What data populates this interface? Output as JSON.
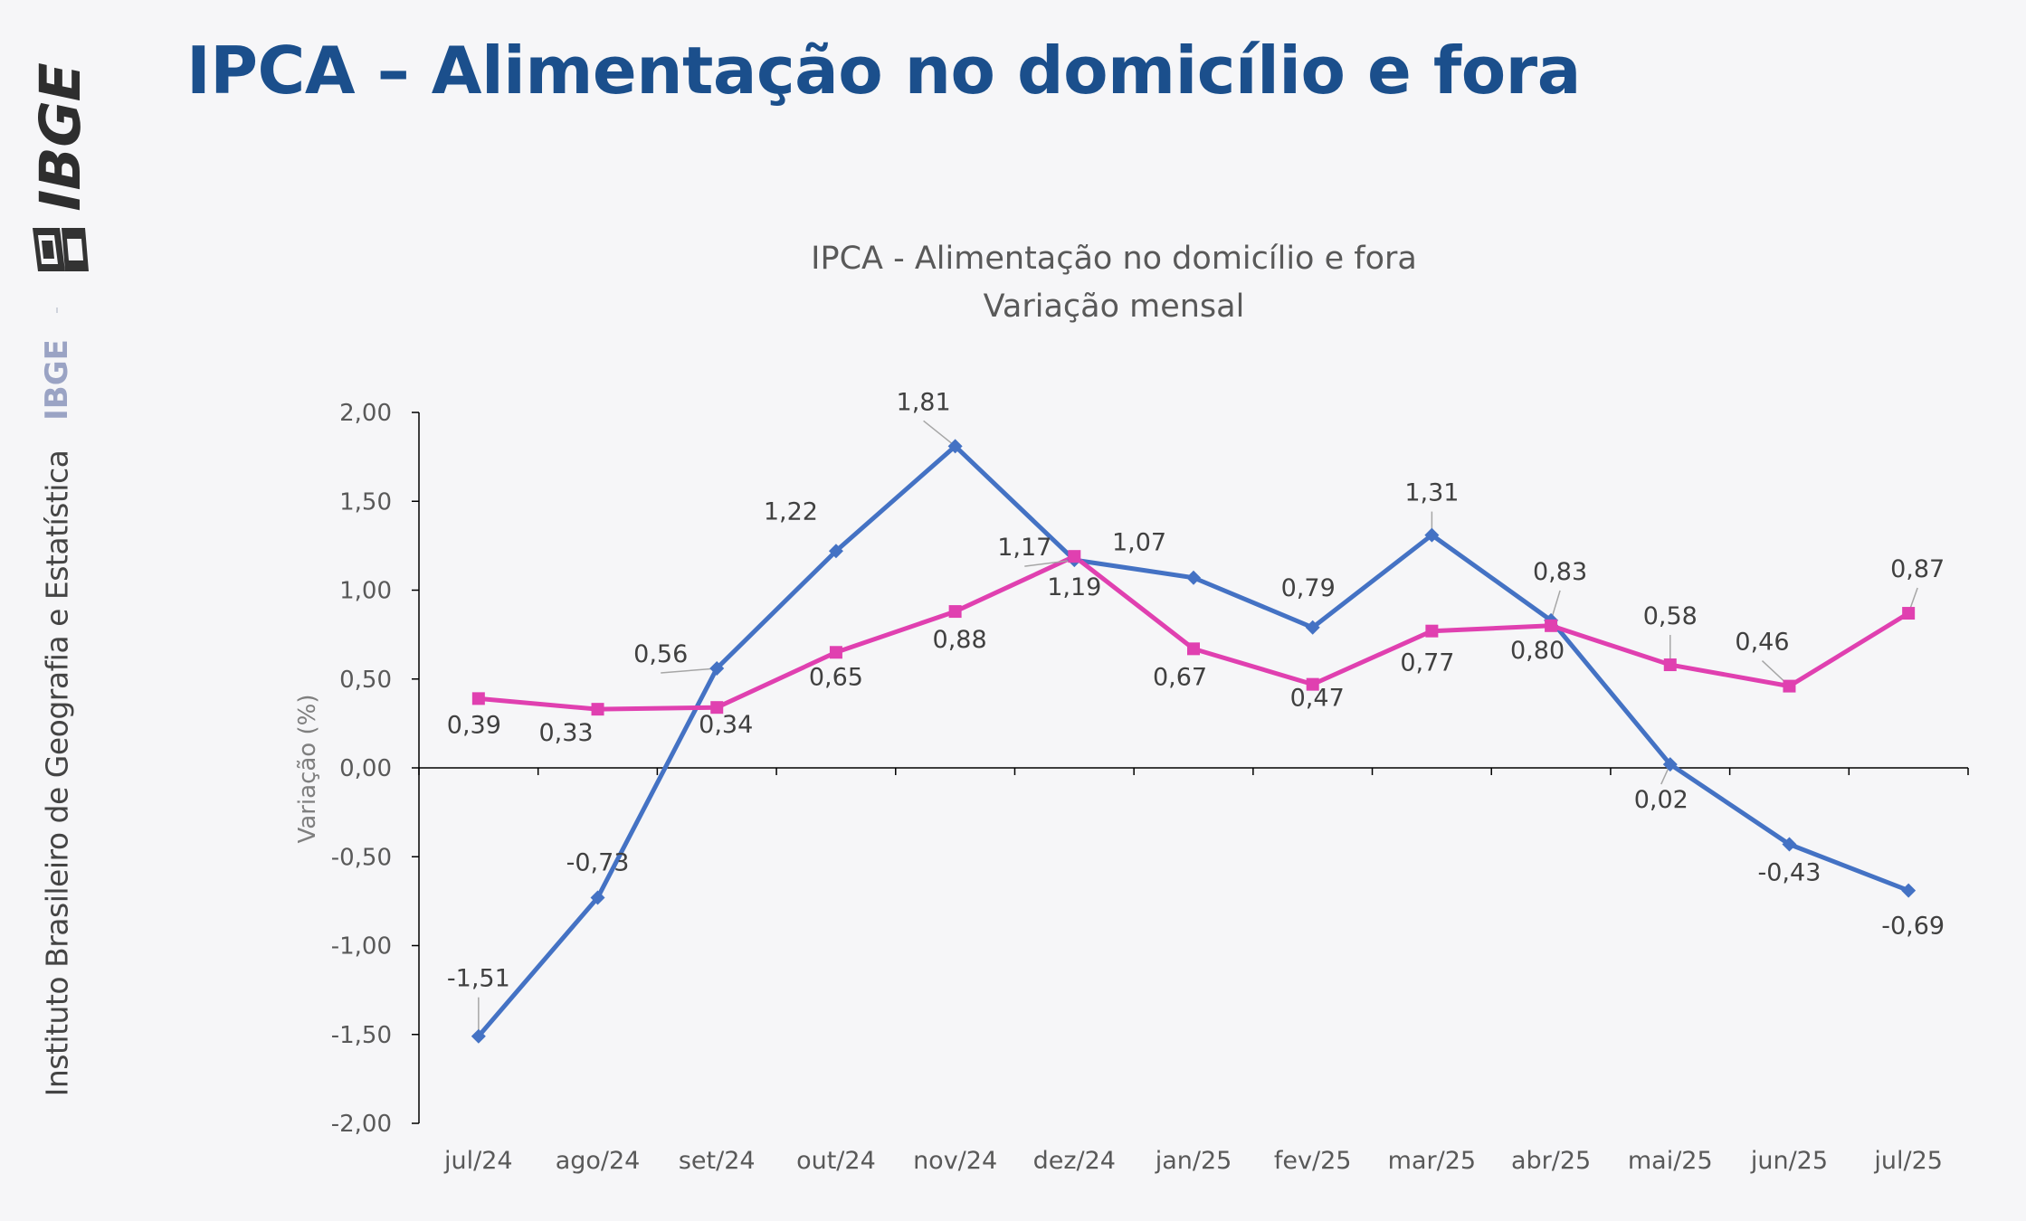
{
  "page": {
    "title": "IPCA – Alimentação no domicílio e fora",
    "logo_text": "IBGE",
    "sidebar_short": "IBGE",
    "sidebar_institute": "Instituto Brasileiro de Geografia e Estatística"
  },
  "chart_data": {
    "type": "line",
    "title": "IPCA - Alimentação no domicílio e fora",
    "subtitle": "Variação mensal",
    "ylabel": "Variação (%)",
    "xlabel": "",
    "ylim": [
      -2.0,
      2.0
    ],
    "yticks": [
      "-2,00",
      "-1,50",
      "-1,00",
      "-0,50",
      "0,00",
      "0,50",
      "1,00",
      "1,50",
      "2,00"
    ],
    "grid": false,
    "categories": [
      "jul/24",
      "ago/24",
      "set/24",
      "out/24",
      "nov/24",
      "dez/24",
      "jan/25",
      "fev/25",
      "mar/25",
      "abr/25",
      "mai/25",
      "jun/25",
      "jul/25"
    ],
    "series": [
      {
        "color": "#4472c4",
        "marker": "diamond",
        "values": [
          -1.51,
          -0.73,
          0.56,
          1.22,
          1.81,
          1.17,
          1.07,
          0.79,
          1.31,
          0.83,
          0.02,
          -0.43,
          -0.69
        ],
        "labels": [
          "-1,51",
          "-0,73",
          "0,56",
          "1,22",
          "1,81",
          "1,17",
          "1,07",
          "0,79",
          "1,31",
          "0,83",
          "0,02",
          "-0,43",
          "-0,69"
        ]
      },
      {
        "color": "#e040b0",
        "marker": "square",
        "values": [
          0.39,
          0.33,
          0.34,
          0.65,
          0.88,
          1.19,
          0.67,
          0.47,
          0.77,
          0.8,
          0.58,
          0.46,
          0.87
        ],
        "labels": [
          "0,39",
          "0,33",
          "0,34",
          "0,65",
          "0,88",
          "1,19",
          "0,67",
          "0,47",
          "0,77",
          "0,80",
          "0,58",
          "0,46",
          "0,87"
        ]
      }
    ]
  }
}
